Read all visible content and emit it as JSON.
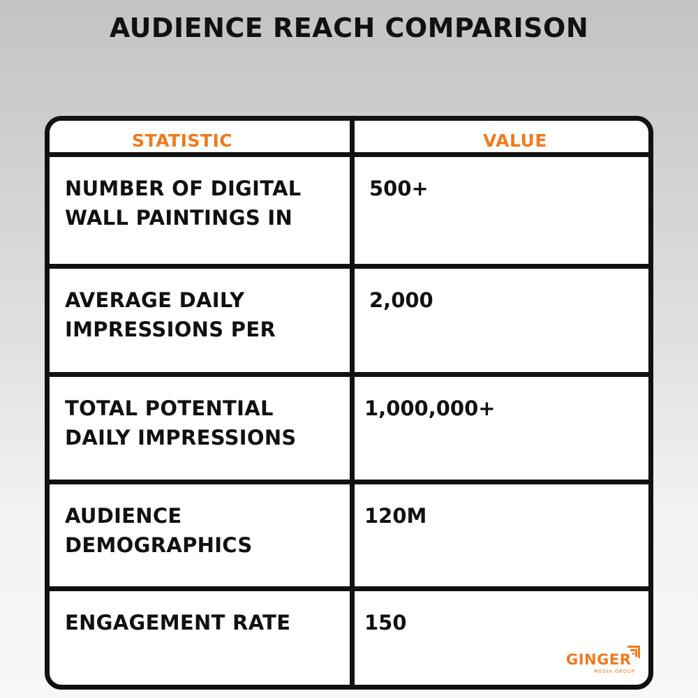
{
  "title": "AUDIENCE REACH COMPARISON",
  "table": {
    "headers": {
      "statistic": "STATISTIC",
      "value": "VALUE"
    },
    "rows": [
      {
        "statistic": "NUMBER OF DIGITAL\nWALL PAINTINGS IN",
        "value": "500+"
      },
      {
        "statistic": "AVERAGE DAILY\nIMPRESSIONS PER",
        "value": "2,000"
      },
      {
        "statistic": "TOTAL POTENTIAL\nDAILY IMPRESSIONS",
        "value": "1,000,000+"
      },
      {
        "statistic": "AUDIENCE\nDEMOGRAPHICS",
        "value": "120M"
      },
      {
        "statistic": "ENGAGEMENT RATE",
        "value": "150"
      }
    ]
  },
  "logo": {
    "name": "GINGER",
    "tagline": "MEDIA GROUP"
  },
  "colors": {
    "accent": "#f07b1e",
    "border": "#111111",
    "text": "#111111"
  }
}
